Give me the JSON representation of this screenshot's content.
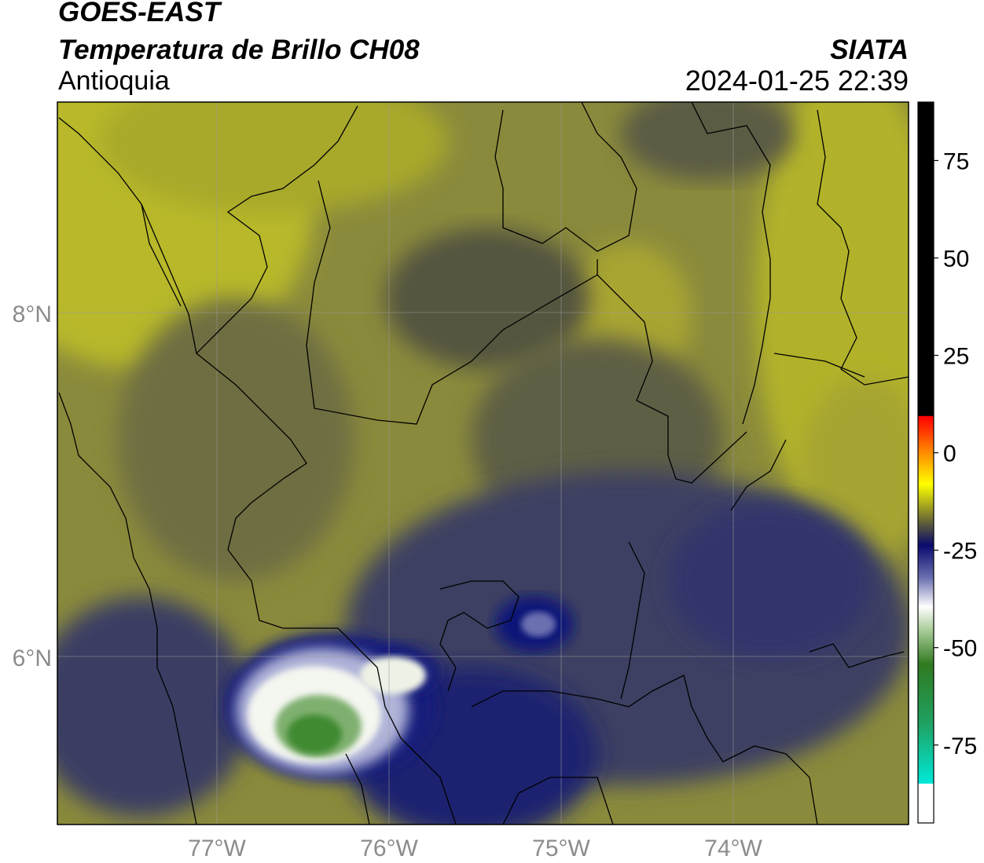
{
  "header": {
    "satellite": "GOES-EAST",
    "product": "Temperatura de Brillo CH08",
    "region": "Antioquia",
    "agency": "SIATA",
    "timestamp": "2024-01-25 22:39"
  },
  "map": {
    "lat_labels": [
      "8°N",
      "6°N"
    ],
    "lon_labels": [
      "77°W",
      "76°W",
      "75°W",
      "74°W"
    ],
    "extent": {
      "lon_min": -77.95,
      "lon_max": -73.05,
      "lat_min": 4.95,
      "lat_max": 9.2
    }
  },
  "colorbar": {
    "ticks": [
      "75",
      "50",
      "25",
      "0",
      "-25",
      "-50",
      "-75"
    ],
    "tick_values": [
      75,
      50,
      25,
      0,
      -25,
      -50,
      -75
    ],
    "range": [
      -95,
      90
    ],
    "colors": {
      "black": "#000000",
      "red": "#e8110a",
      "orange": "#ff8c00",
      "yellow": "#ffff00",
      "olive": "#6e6e3a",
      "navy": "#141a6e",
      "white": "#ffffff",
      "green": "#3a8a2e",
      "cyan": "#00e8d8"
    }
  }
}
